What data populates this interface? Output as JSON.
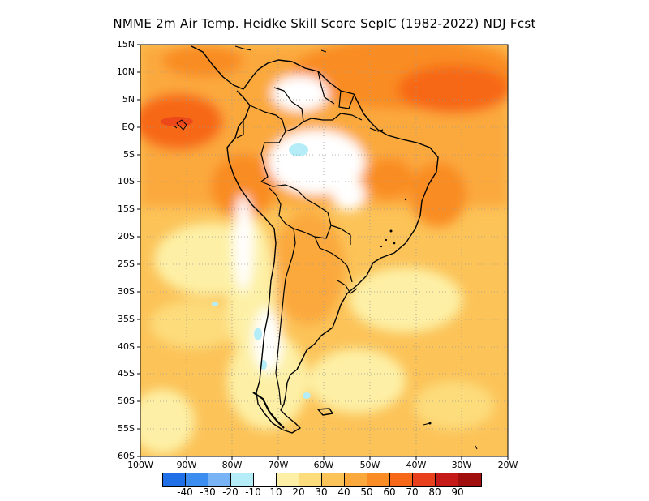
{
  "title": "NMME  2m Air Temp. Heidke Skill Score SepIC (1982-2022) NDJ Fcst",
  "map": {
    "lat_labels": [
      "15N",
      "10N",
      "5N",
      "EQ",
      "5S",
      "10S",
      "15S",
      "20S",
      "25S",
      "30S",
      "35S",
      "40S",
      "45S",
      "50S",
      "55S",
      "60S"
    ],
    "lon_labels": [
      "100W",
      "90W",
      "80W",
      "70W",
      "60W",
      "50W",
      "40W",
      "30W",
      "20W"
    ],
    "lat_range": [
      -60,
      15
    ],
    "lon_range": [
      -100,
      -20
    ],
    "grid": "dotted"
  },
  "legend": {
    "colors": [
      "#1f6fe6",
      "#3c8df0",
      "#78b4f5",
      "#b4ecf8",
      "#ffffff",
      "#fdf0a6",
      "#fddc7c",
      "#fcc358",
      "#fba93c",
      "#f98c24",
      "#f76818",
      "#e8401c",
      "#c51a18",
      "#a00e0e"
    ],
    "labels": [
      "-40",
      "-30",
      "-20",
      "-10",
      "10",
      "20",
      "30",
      "40",
      "50",
      "60",
      "70",
      "80",
      "90"
    ]
  }
}
